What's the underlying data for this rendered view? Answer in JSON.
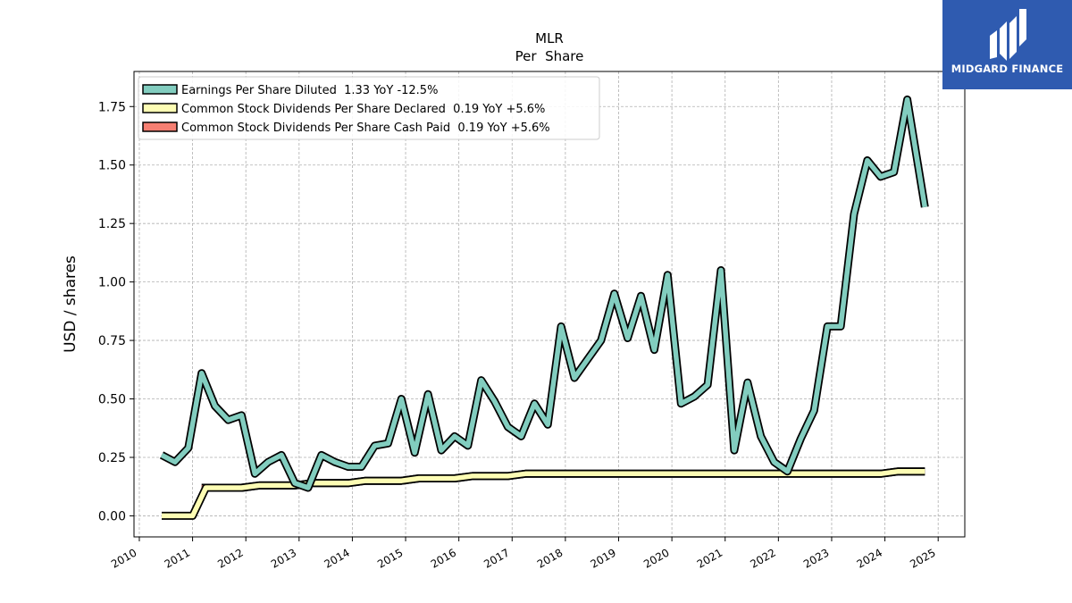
{
  "chart_data": {
    "type": "line",
    "title": "MLR",
    "subtitle": "Per  Share",
    "xlabel": "",
    "ylabel": "USD / shares",
    "xlim": [
      2009.9,
      2025.5
    ],
    "ylim": [
      -0.09,
      1.9
    ],
    "grid": true,
    "legend_position": "top-left",
    "x_ticks": [
      "2010",
      "2011",
      "2012",
      "2013",
      "2014",
      "2015",
      "2016",
      "2017",
      "2018",
      "2019",
      "2020",
      "2021",
      "2022",
      "2023",
      "2024",
      "2025"
    ],
    "y_ticks": [
      "0.00",
      "0.25",
      "0.50",
      "0.75",
      "1.00",
      "1.25",
      "1.50",
      "1.75"
    ],
    "series": [
      {
        "name": "Earnings Per Share Diluted  1.33 YoY -12.5%",
        "color": "#82cdbf",
        "x": [
          2010.42,
          2010.67,
          2010.92,
          2011.17,
          2011.42,
          2011.67,
          2011.92,
          2012.17,
          2012.42,
          2012.67,
          2012.92,
          2013.17,
          2013.42,
          2013.67,
          2013.92,
          2014.17,
          2014.42,
          2014.67,
          2014.92,
          2015.17,
          2015.42,
          2015.67,
          2015.92,
          2016.17,
          2016.42,
          2016.67,
          2016.92,
          2017.17,
          2017.42,
          2017.67,
          2017.92,
          2018.17,
          2018.42,
          2018.67,
          2018.92,
          2019.17,
          2019.42,
          2019.67,
          2019.92,
          2020.17,
          2020.42,
          2020.67,
          2020.92,
          2021.17,
          2021.42,
          2021.67,
          2021.92,
          2022.17,
          2022.42,
          2022.67,
          2022.92,
          2023.17,
          2023.42,
          2023.67,
          2023.92,
          2024.17,
          2024.42,
          2024.75
        ],
        "values": [
          0.26,
          0.23,
          0.29,
          0.61,
          0.47,
          0.41,
          0.43,
          0.18,
          0.23,
          0.26,
          0.14,
          0.12,
          0.26,
          0.23,
          0.21,
          0.21,
          0.3,
          0.31,
          0.5,
          0.27,
          0.52,
          0.28,
          0.34,
          0.3,
          0.58,
          0.49,
          0.38,
          0.34,
          0.48,
          0.39,
          0.81,
          0.59,
          0.67,
          0.75,
          0.95,
          0.76,
          0.94,
          0.71,
          1.03,
          0.48,
          0.51,
          0.56,
          1.05,
          0.28,
          0.57,
          0.34,
          0.23,
          0.19,
          0.33,
          0.45,
          0.81,
          0.81,
          1.29,
          1.52,
          1.45,
          1.47,
          1.78,
          1.32
        ]
      },
      {
        "name": "Common Stock Dividends Per Share Declared  0.19 YoY +5.6%",
        "color": "#fdfdb4",
        "x": [
          2010.42,
          2011.0,
          2011.25,
          2011.92,
          2012.25,
          2012.92,
          2013.25,
          2013.92,
          2014.25,
          2014.92,
          2015.25,
          2015.92,
          2016.25,
          2016.92,
          2017.25,
          2017.92,
          2018.25,
          2018.92,
          2019.25,
          2019.92,
          2020.25,
          2020.92,
          2021.25,
          2021.92,
          2022.25,
          2022.92,
          2023.25,
          2023.92,
          2024.25,
          2024.75
        ],
        "values": [
          0.0,
          0.0,
          0.12,
          0.12,
          0.13,
          0.13,
          0.14,
          0.14,
          0.15,
          0.15,
          0.16,
          0.16,
          0.17,
          0.17,
          0.18,
          0.18,
          0.18,
          0.18,
          0.18,
          0.18,
          0.18,
          0.18,
          0.18,
          0.18,
          0.18,
          0.18,
          0.18,
          0.18,
          0.19,
          0.19
        ]
      },
      {
        "name": "Common Stock Dividends Per Share Cash Paid  0.19 YoY +5.6%",
        "color": "#f67f72",
        "x": [
          2011.17,
          2011.92,
          2012.25,
          2012.92,
          2013.25,
          2013.92,
          2014.25,
          2014.92,
          2015.25,
          2015.92,
          2016.25,
          2016.92,
          2017.25,
          2017.92,
          2018.25,
          2018.92,
          2019.25,
          2019.92,
          2020.25,
          2020.92,
          2021.25,
          2021.92,
          2022.25,
          2022.92,
          2023.25,
          2023.92,
          2024.25,
          2024.75
        ],
        "values": [
          0.12,
          0.12,
          0.13,
          0.13,
          0.14,
          0.14,
          0.15,
          0.15,
          0.16,
          0.16,
          0.17,
          0.17,
          0.18,
          0.18,
          0.18,
          0.18,
          0.18,
          0.18,
          0.18,
          0.18,
          0.18,
          0.18,
          0.18,
          0.18,
          0.18,
          0.18,
          0.19,
          0.19
        ]
      }
    ]
  },
  "logo": {
    "text": "MIDGARD FINANCE",
    "background": "#2f5bb0",
    "icon": "midgard-logo-icon"
  }
}
